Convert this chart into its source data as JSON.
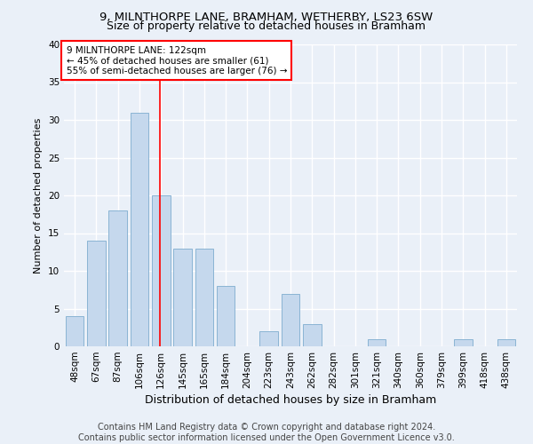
{
  "title1": "9, MILNTHORPE LANE, BRAMHAM, WETHERBY, LS23 6SW",
  "title2": "Size of property relative to detached houses in Bramham",
  "xlabel": "Distribution of detached houses by size in Bramham",
  "ylabel": "Number of detached properties",
  "categories": [
    "48sqm",
    "67sqm",
    "87sqm",
    "106sqm",
    "126sqm",
    "145sqm",
    "165sqm",
    "184sqm",
    "204sqm",
    "223sqm",
    "243sqm",
    "262sqm",
    "282sqm",
    "301sqm",
    "321sqm",
    "340sqm",
    "360sqm",
    "379sqm",
    "399sqm",
    "418sqm",
    "438sqm"
  ],
  "values": [
    4,
    14,
    18,
    31,
    20,
    13,
    13,
    8,
    0,
    2,
    7,
    3,
    0,
    0,
    1,
    0,
    0,
    0,
    1,
    0,
    1
  ],
  "bar_color": "#c5d8ed",
  "bar_edge_color": "#8ab4d4",
  "vline_color": "red",
  "vline_x": 3.93,
  "annotation_text": "9 MILNTHORPE LANE: 122sqm\n← 45% of detached houses are smaller (61)\n55% of semi-detached houses are larger (76) →",
  "ylim": [
    0,
    40
  ],
  "yticks": [
    0,
    5,
    10,
    15,
    20,
    25,
    30,
    35,
    40
  ],
  "footer_text": "Contains HM Land Registry data © Crown copyright and database right 2024.\nContains public sector information licensed under the Open Government Licence v3.0.",
  "bg_color": "#eaf0f8",
  "plot_bg_color": "#eaf0f8",
  "grid_color": "#ffffff",
  "title1_fontsize": 9.5,
  "title2_fontsize": 9,
  "xlabel_fontsize": 9,
  "ylabel_fontsize": 8,
  "tick_fontsize": 7.5,
  "annot_fontsize": 7.5,
  "footer_fontsize": 7
}
